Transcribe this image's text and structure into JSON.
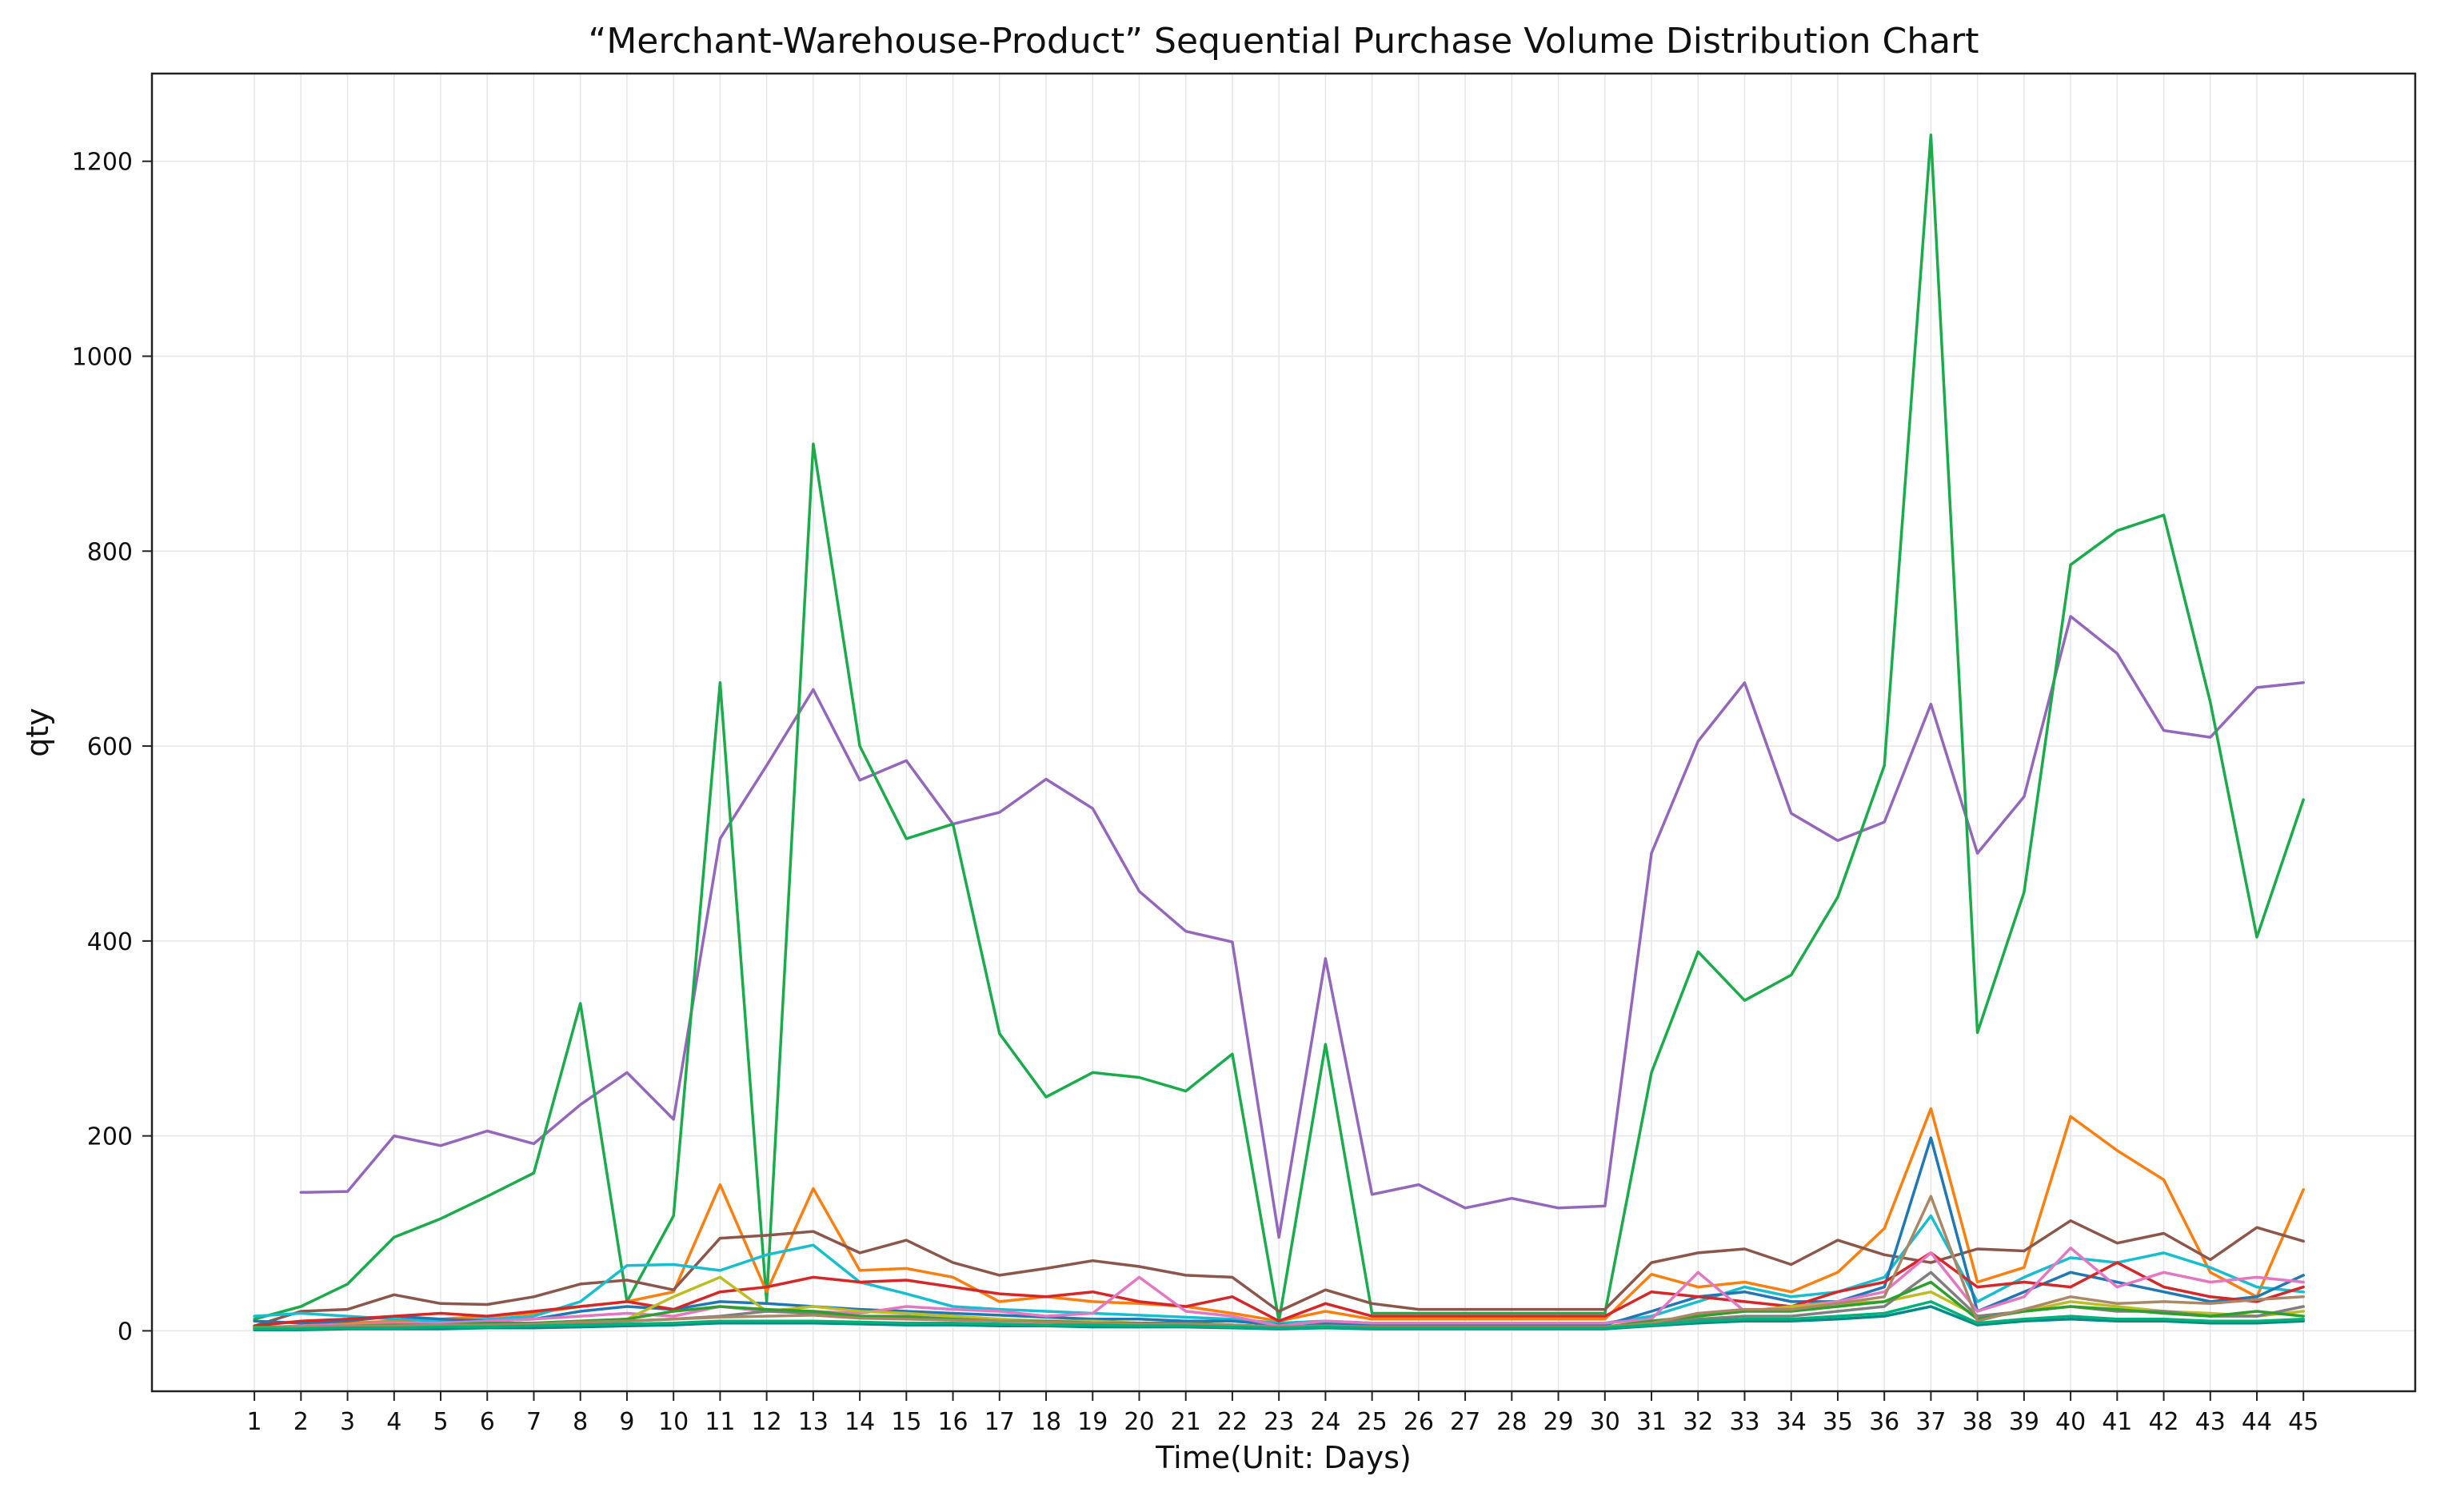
{
  "chart_data": {
    "type": "line",
    "title": "“Merchant-Warehouse-Product” Sequential Purchase Volume Distribution Chart",
    "xlabel": "Time(Unit: Days)",
    "ylabel": "qty",
    "x": [
      1,
      2,
      3,
      4,
      5,
      6,
      7,
      8,
      9,
      10,
      11,
      12,
      13,
      14,
      15,
      16,
      17,
      18,
      19,
      20,
      21,
      22,
      23,
      24,
      25,
      26,
      27,
      28,
      29,
      30,
      31,
      32,
      33,
      34,
      35,
      36,
      37,
      38,
      39,
      40,
      41,
      42,
      43,
      44,
      45
    ],
    "xlim": [
      -1.2,
      47.4
    ],
    "ylim": [
      -62,
      1290
    ],
    "yticks": [
      0,
      200,
      400,
      600,
      800,
      1000,
      1200
    ],
    "grid": true,
    "legend": "none",
    "series": [
      {
        "color": "#9467bd",
        "values": [
          null,
          142,
          143,
          200,
          190,
          205,
          192,
          232,
          265,
          217,
          505,
          580,
          658,
          565,
          585,
          520,
          532,
          566,
          536,
          451,
          410,
          399,
          96,
          382,
          140,
          150,
          126,
          136,
          126,
          128,
          490,
          605,
          665,
          531,
          503,
          522,
          643,
          490,
          548,
          733,
          695,
          616,
          609,
          660,
          665
        ]
      },
      {
        "color": "#1aab4b",
        "values": [
          12,
          25,
          48,
          96,
          115,
          138,
          162,
          336,
          30,
          118,
          665,
          30,
          910,
          600,
          505,
          520,
          305,
          240,
          265,
          260,
          246,
          284,
          10,
          294,
          18,
          18,
          18,
          18,
          18,
          18,
          265,
          389,
          339,
          365,
          445,
          580,
          1227,
          306,
          450,
          786,
          821,
          837,
          645,
          404,
          545
        ]
      },
      {
        "color": "#ff7f0e",
        "values": [
          3,
          5,
          8,
          10,
          12,
          15,
          18,
          25,
          30,
          40,
          150,
          40,
          146,
          62,
          64,
          55,
          30,
          35,
          30,
          28,
          25,
          18,
          10,
          20,
          12,
          12,
          12,
          12,
          12,
          12,
          58,
          45,
          50,
          40,
          60,
          105,
          228,
          50,
          65,
          220,
          185,
          155,
          60,
          35,
          145
        ]
      },
      {
        "color": "#8c564b",
        "values": [
          5,
          20,
          22,
          37,
          28,
          27,
          35,
          48,
          52,
          42,
          95,
          98,
          102,
          80,
          93,
          70,
          57,
          64,
          72,
          66,
          57,
          55,
          20,
          42,
          28,
          22,
          22,
          22,
          22,
          22,
          70,
          80,
          84,
          68,
          93,
          78,
          70,
          84,
          82,
          113,
          90,
          100,
          73,
          106,
          92
        ]
      },
      {
        "color": "#17becf",
        "values": [
          15,
          18,
          15,
          12,
          10,
          12,
          15,
          30,
          67,
          68,
          62,
          78,
          88,
          50,
          38,
          25,
          22,
          20,
          18,
          16,
          14,
          12,
          8,
          10,
          8,
          8,
          8,
          8,
          8,
          8,
          15,
          30,
          45,
          35,
          40,
          55,
          118,
          30,
          55,
          75,
          70,
          80,
          65,
          45,
          40
        ]
      },
      {
        "color": "#1f77b4",
        "values": [
          10,
          8,
          10,
          15,
          12,
          10,
          12,
          20,
          25,
          22,
          30,
          28,
          25,
          22,
          20,
          18,
          16,
          14,
          12,
          12,
          10,
          10,
          6,
          8,
          6,
          6,
          6,
          6,
          6,
          6,
          20,
          35,
          40,
          30,
          30,
          45,
          198,
          20,
          40,
          60,
          50,
          40,
          30,
          35,
          57
        ]
      },
      {
        "color": "#d62728",
        "values": [
          5,
          10,
          12,
          15,
          18,
          15,
          20,
          25,
          30,
          22,
          40,
          45,
          55,
          50,
          52,
          45,
          38,
          35,
          40,
          30,
          25,
          35,
          10,
          28,
          15,
          15,
          15,
          15,
          15,
          15,
          40,
          35,
          30,
          25,
          40,
          50,
          80,
          45,
          50,
          45,
          70,
          45,
          35,
          30,
          45
        ]
      },
      {
        "color": "#e377c2",
        "values": [
          3,
          5,
          6,
          8,
          8,
          10,
          12,
          15,
          18,
          15,
          25,
          20,
          20,
          18,
          25,
          22,
          20,
          15,
          18,
          55,
          20,
          15,
          5,
          10,
          8,
          8,
          8,
          8,
          8,
          8,
          12,
          60,
          20,
          25,
          30,
          40,
          80,
          20,
          35,
          85,
          45,
          60,
          50,
          55,
          50
        ]
      },
      {
        "color": "#bcbd22",
        "values": [
          2,
          3,
          4,
          5,
          6,
          7,
          8,
          10,
          12,
          35,
          55,
          20,
          25,
          20,
          18,
          15,
          12,
          10,
          10,
          8,
          8,
          6,
          4,
          5,
          4,
          4,
          4,
          4,
          4,
          4,
          10,
          15,
          20,
          25,
          28,
          30,
          40,
          15,
          20,
          30,
          25,
          20,
          18,
          15,
          20
        ]
      },
      {
        "color": "#7f7f7f",
        "values": [
          2,
          2,
          3,
          4,
          4,
          5,
          6,
          8,
          10,
          12,
          15,
          20,
          18,
          15,
          15,
          12,
          10,
          10,
          8,
          8,
          8,
          6,
          4,
          5,
          4,
          4,
          4,
          4,
          4,
          4,
          8,
          12,
          15,
          15,
          20,
          25,
          60,
          15,
          20,
          25,
          20,
          20,
          15,
          15,
          25
        ]
      },
      {
        "color": "#2ca02c",
        "values": [
          4,
          4,
          5,
          6,
          6,
          8,
          8,
          10,
          12,
          20,
          25,
          22,
          20,
          15,
          14,
          12,
          10,
          10,
          8,
          8,
          8,
          6,
          4,
          5,
          4,
          4,
          4,
          4,
          4,
          4,
          10,
          15,
          20,
          20,
          25,
          30,
          50,
          12,
          20,
          25,
          22,
          18,
          15,
          20,
          15
        ]
      },
      {
        "color": "#aa8866",
        "values": [
          3,
          4,
          5,
          5,
          6,
          6,
          7,
          9,
          10,
          12,
          14,
          15,
          16,
          13,
          12,
          11,
          10,
          9,
          8,
          7,
          7,
          6,
          4,
          5,
          4,
          4,
          4,
          4,
          4,
          4,
          8,
          18,
          22,
          22,
          28,
          35,
          138,
          10,
          22,
          35,
          28,
          30,
          28,
          32,
          35
        ]
      },
      {
        "color": "#008b8b",
        "values": [
          1,
          1,
          2,
          2,
          2,
          3,
          3,
          4,
          5,
          6,
          8,
          8,
          8,
          7,
          6,
          6,
          5,
          5,
          4,
          4,
          4,
          3,
          2,
          3,
          2,
          2,
          2,
          2,
          2,
          2,
          5,
          8,
          10,
          10,
          12,
          15,
          25,
          6,
          10,
          12,
          10,
          10,
          8,
          8,
          10
        ]
      },
      {
        "color": "#00b27a",
        "values": [
          2,
          2,
          3,
          3,
          4,
          4,
          5,
          6,
          7,
          8,
          10,
          10,
          10,
          9,
          8,
          8,
          7,
          6,
          6,
          5,
          5,
          4,
          3,
          4,
          3,
          3,
          3,
          3,
          3,
          3,
          6,
          10,
          12,
          12,
          15,
          18,
          30,
          8,
          12,
          15,
          12,
          12,
          10,
          10,
          12
        ]
      }
    ]
  }
}
